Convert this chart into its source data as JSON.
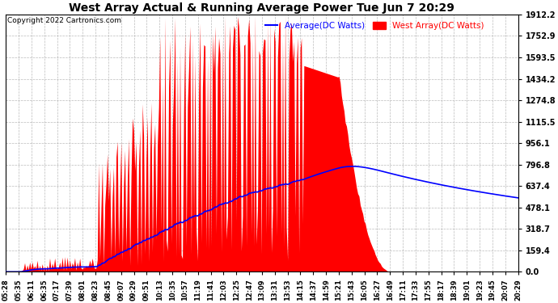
{
  "title": "West Array Actual & Running Average Power Tue Jun 7 20:29",
  "copyright": "Copyright 2022 Cartronics.com",
  "legend_avg": "Average(DC Watts)",
  "legend_west": "West Array(DC Watts)",
  "ymax": 1912.2,
  "yticks": [
    0.0,
    159.4,
    318.7,
    478.1,
    637.4,
    796.8,
    956.1,
    1115.5,
    1274.8,
    1434.2,
    1593.5,
    1752.9,
    1912.2
  ],
  "ytick_labels": [
    "0.0",
    "159.4",
    "318.7",
    "478.1",
    "637.4",
    "796.8",
    "956.1",
    "1115.5",
    "1274.8",
    "1434.2",
    "1593.5",
    "1752.9",
    "1912.2"
  ],
  "bg_color": "#ffffff",
  "grid_color": "#aaaaaa",
  "red_color": "#ff0000",
  "blue_color": "#0000ff",
  "title_color": "#000000",
  "copyright_color": "#000000",
  "xtick_labels": [
    "05:28",
    "05:35",
    "06:11",
    "06:35",
    "07:17",
    "07:39",
    "08:01",
    "08:23",
    "08:45",
    "09:07",
    "09:29",
    "09:51",
    "10:13",
    "10:35",
    "10:57",
    "11:19",
    "11:41",
    "12:03",
    "12:25",
    "12:47",
    "13:09",
    "13:31",
    "13:53",
    "14:15",
    "14:37",
    "14:59",
    "15:21",
    "15:43",
    "16:05",
    "16:27",
    "16:49",
    "17:11",
    "17:33",
    "17:55",
    "18:17",
    "18:39",
    "19:01",
    "19:23",
    "19:45",
    "20:07",
    "20:29"
  ]
}
